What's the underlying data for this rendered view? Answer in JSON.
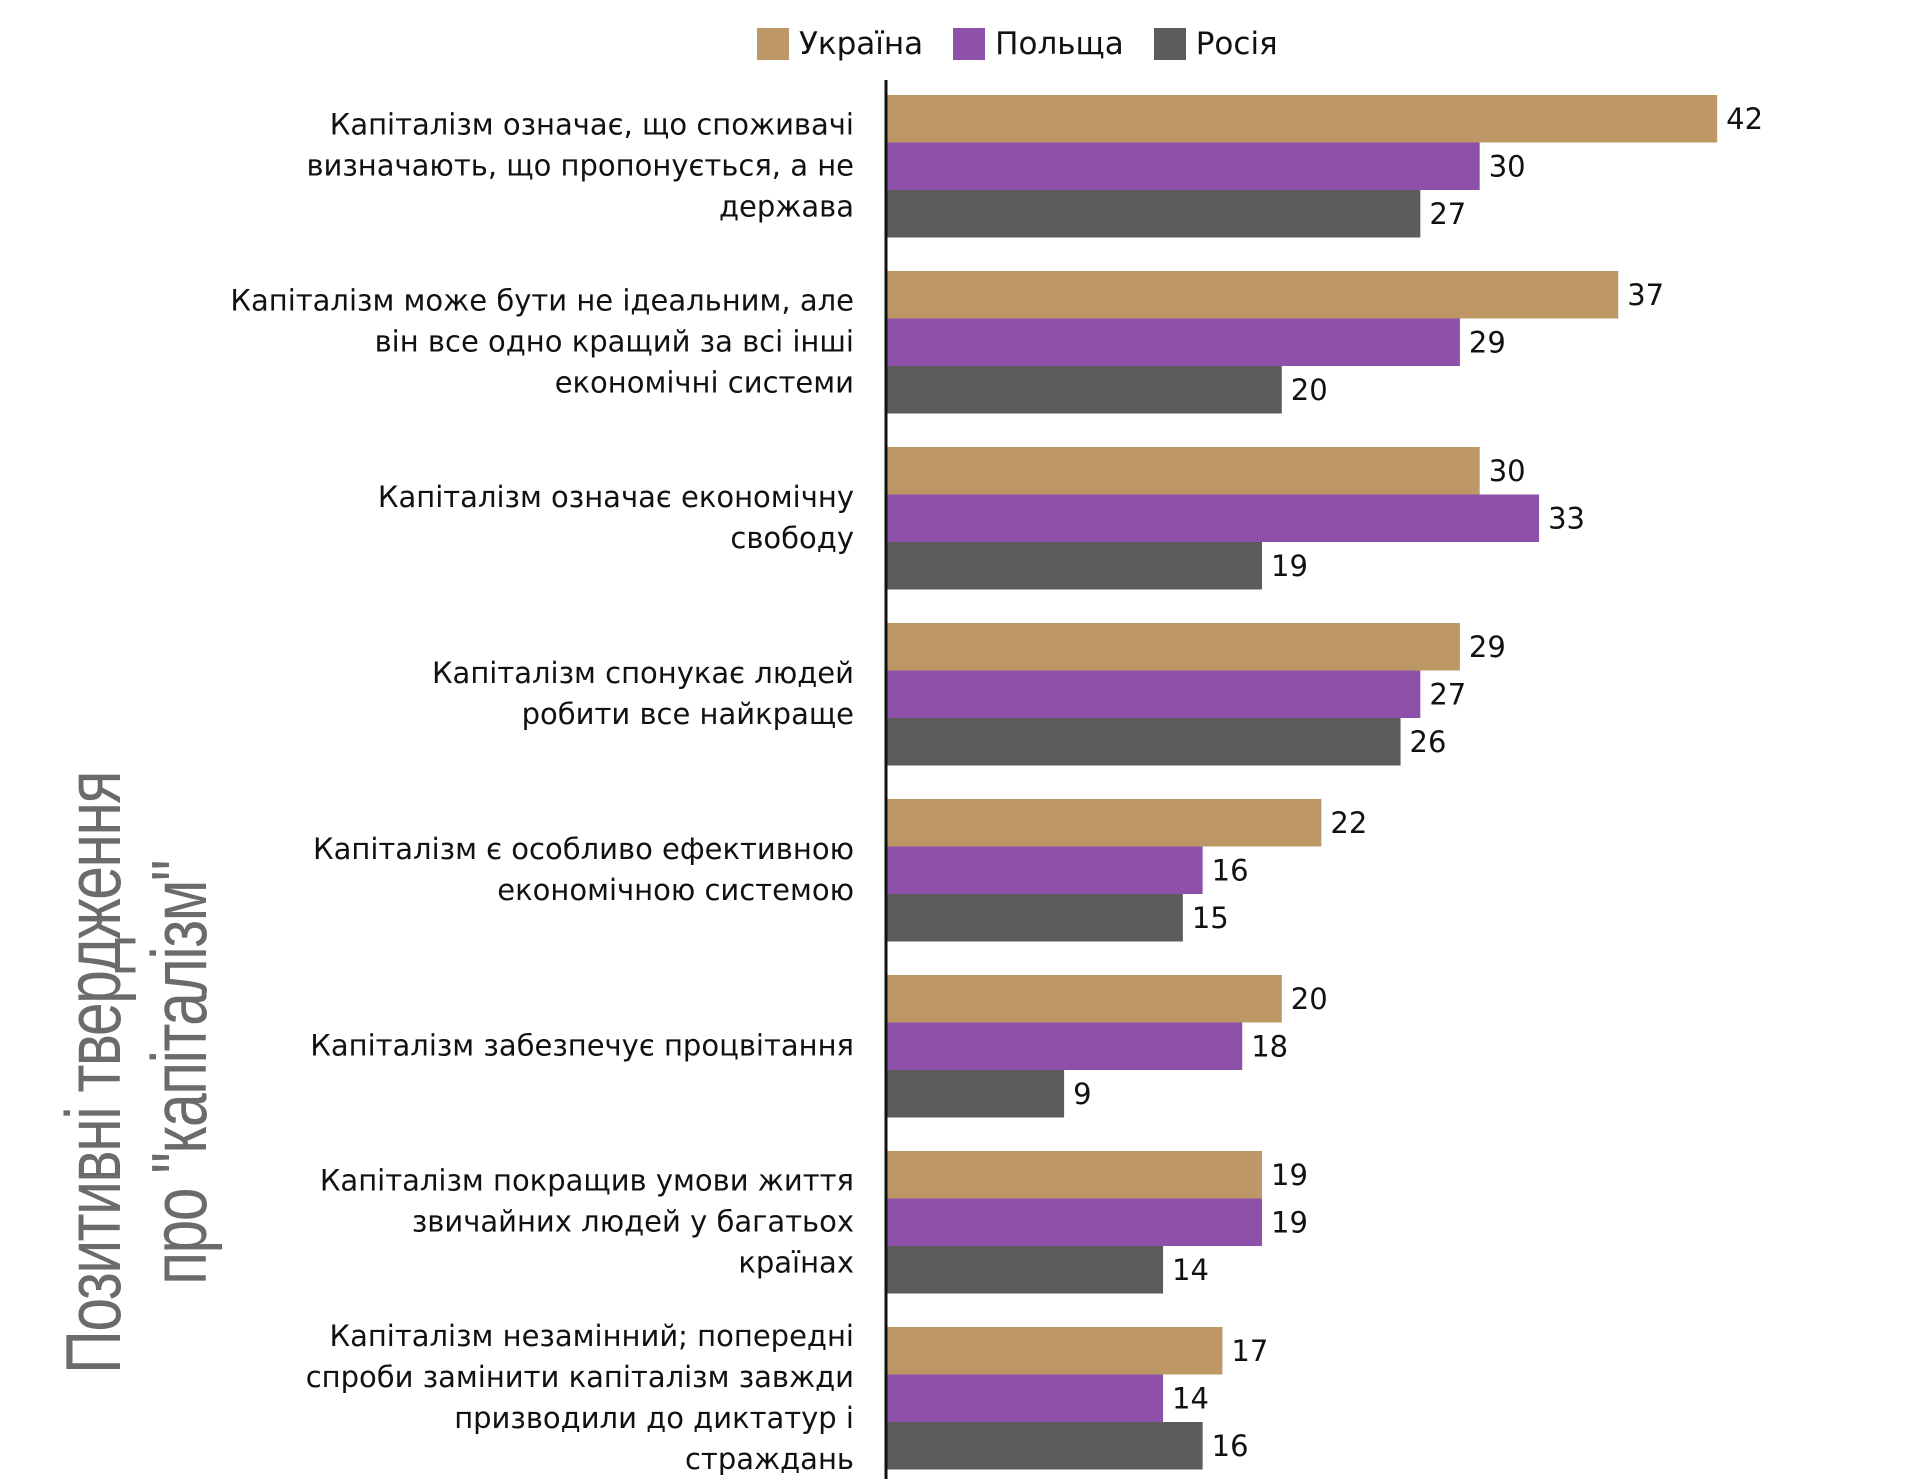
{
  "chart_data": {
    "type": "bar",
    "orientation": "horizontal",
    "ylabel": "Позитивні твердження про \"капіталізм\"",
    "ylabel_lines": [
      "Позитивні твердження",
      "про \"капіталізм\""
    ],
    "legend_position": "top",
    "grid": false,
    "xlim": [
      0,
      45
    ],
    "categories": [
      "Капіталізм означає, що споживачі визначають, що пропонується, а не держава",
      "Капіталізм може бути не ідеальним, але він все одно кращий за всі інші економічні системи",
      "Капіталізм означає економічну свободу",
      "Капіталізм спонукає людей робити все найкраще",
      "Капіталізм є особливо ефективною економічною системою",
      "Капіталізм забезпечує процвітання",
      "Капіталізм покращив умови життя звичайних людей у багатьох країнах",
      "Капіталізм незамінний; попередні спроби замінити капіталізм завжди призводили до диктатур і страждань"
    ],
    "category_lines": [
      [
        "Капіталізм означає, що споживачі",
        "визначають, що пропонується, а не",
        "держава"
      ],
      [
        "Капіталізм може бути не ідеальним, але",
        "він все одно кращий за всі інші",
        "економічні системи"
      ],
      [
        "Капіталізм означає економічну",
        "свободу"
      ],
      [
        "Капіталізм спонукає людей",
        "робити все найкраще"
      ],
      [
        "Капіталізм є особливо ефективною",
        "економічною системою"
      ],
      [
        "Капіталізм забезпечує процвітання"
      ],
      [
        "Капіталізм покращив умови життя",
        "звичайних людей у багатьох",
        "країнах"
      ],
      [
        "Капіталізм незамінний; попередні",
        "спроби замінити капіталізм завжди",
        "призводили до диктатур і",
        "страждань"
      ]
    ],
    "series": [
      {
        "name": "Україна",
        "color": "#bd9766",
        "values": [
          42,
          37,
          30,
          29,
          22,
          20,
          19,
          17
        ]
      },
      {
        "name": "Польща",
        "color": "#8e51a9",
        "values": [
          30,
          29,
          33,
          27,
          16,
          18,
          19,
          14
        ]
      },
      {
        "name": "Росія",
        "color": "#5c5c5c",
        "values": [
          27,
          20,
          19,
          26,
          15,
          9,
          14,
          16
        ]
      }
    ]
  }
}
